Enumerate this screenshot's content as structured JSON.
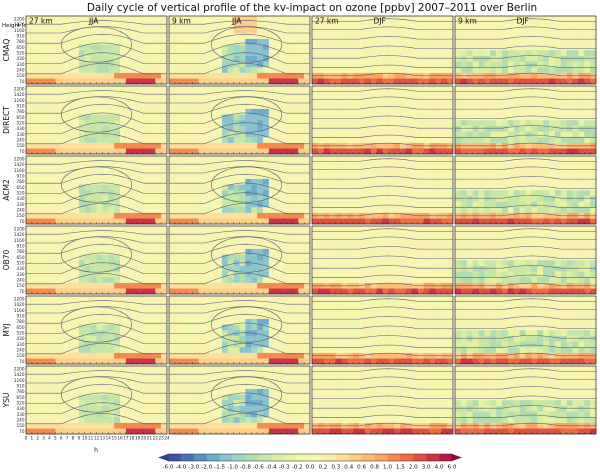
{
  "chart_data": {
    "type": "heatmap",
    "title": "Daily cycle of vertical profile of the kv-impact on ozone [ppbv] 2007–2011 over Berlin",
    "y_axis_title": "Height [m]",
    "x_axis_title": "h",
    "y_ticks": [
      "70",
      "150",
      "240",
      "330",
      "430",
      "520",
      "650",
      "780",
      "910",
      "1160",
      "1420",
      "2200"
    ],
    "x_ticks": [
      "0",
      "1",
      "2",
      "3",
      "4",
      "5",
      "6",
      "7",
      "8",
      "9",
      "10",
      "11",
      "12",
      "13",
      "14",
      "15",
      "16",
      "17",
      "18",
      "19",
      "20",
      "21",
      "22",
      "23",
      "24"
    ],
    "columns": [
      {
        "resolution": "27 km",
        "season": "JJA"
      },
      {
        "resolution": "9 km",
        "season": "JJA"
      },
      {
        "resolution": "27 km",
        "season": "DJF"
      },
      {
        "resolution": "9 km",
        "season": "DJF"
      }
    ],
    "rows": [
      "CMAQ",
      "DIRECT",
      "ACM2",
      "OB70",
      "MYJ",
      "YSU"
    ],
    "colorbar": {
      "ticks": [
        "-6.0",
        "-4.0",
        "-3.0",
        "-2.0",
        "-1.5",
        "-1.0",
        "-0.8",
        "-0.6",
        "-0.4",
        "-0.3",
        "-0.2",
        "0.0",
        "0.2",
        "0.3",
        "0.4",
        "0.6",
        "0.8",
        "1.0",
        "1.5",
        "2.0",
        "3.0",
        "4.0",
        "6.0"
      ],
      "colors": [
        "#3e53a2",
        "#4a71b3",
        "#5a8fc0",
        "#6fabcd",
        "#8ac3ce",
        "#9fd4c2",
        "#b2ddb0",
        "#c6e7a6",
        "#d9efa2",
        "#e6f4a1",
        "#f2f8ad",
        "#f8f4b1",
        "#fcecac",
        "#fde19a",
        "#fdd08a",
        "#fdbc74",
        "#fba560",
        "#f58a4f",
        "#ec6c43",
        "#de5243",
        "#cb3447",
        "#b51a4a"
      ],
      "under_color": "#2c3f91",
      "over_color": "#9e0142"
    },
    "grid": false
  },
  "colors": {
    "background_field": "#f3f7b6",
    "contour_line": "#5a5a78"
  }
}
